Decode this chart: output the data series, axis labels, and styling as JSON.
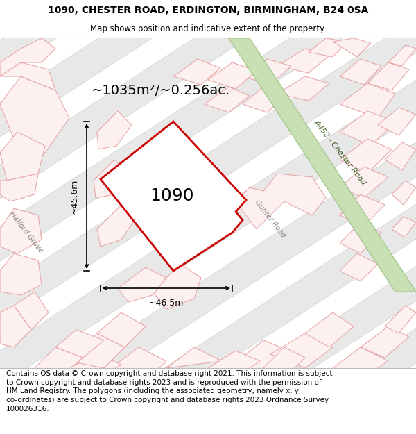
{
  "title_line1": "1090, CHESTER ROAD, ERDINGTON, BIRMINGHAM, B24 0SA",
  "title_line2": "Map shows position and indicative extent of the property.",
  "area_text": "~1035m²/~0.256ac.",
  "width_label": "~46.5m",
  "height_label": "~45.6m",
  "property_number": "1090",
  "road_label_1": "A452 - Chester Road",
  "road_label_2": "Gunter Road",
  "road_label_3": "Halford Grove",
  "footer_text": "Contains OS data © Crown copyright and database right 2021. This information is subject to Crown copyright and database rights 2023 and is reproduced with the permission of HM Land Registry. The polygons (including the associated geometry, namely x, y co-ordinates) are subject to Crown copyright and database rights 2023 Ordnance Survey 100026316.",
  "map_bg": "#ffffff",
  "grey_block_fill": "#e8e8e8",
  "grey_block_edge": "#d0d0d0",
  "pink_fill": "#fce8e8",
  "pink_edge": "#e8a0a0",
  "green_fill": "#c8e0b4",
  "green_edge": "#a8c890",
  "property_fill": "#ffffff",
  "property_edge": "#cc0000",
  "title_fs": 10,
  "subtitle_fs": 8.5,
  "area_fs": 14,
  "label_fs": 9,
  "road_fs": 7.5,
  "footer_fs": 7.5
}
